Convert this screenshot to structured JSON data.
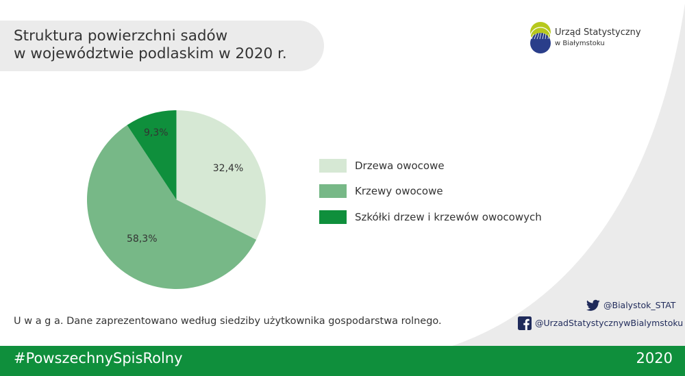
{
  "title": {
    "line1": "Struktura powierzchni sadów",
    "line2": "w województwie podlaskim w 2020 r."
  },
  "logo": {
    "name": "Urząd Statystyczny",
    "sub": "w Białymstoku",
    "colors": {
      "top": "#b7c81d",
      "bottom": "#2a3e8a"
    }
  },
  "chart_data": {
    "type": "pie",
    "categories": [
      "Drzewa owocowe",
      "Krzewy owocowe",
      "Szkółki drzew i krzewów owocowych"
    ],
    "values": [
      32.4,
      58.3,
      9.3
    ],
    "labels": [
      "32,4%",
      "58,3%",
      "9,3%"
    ],
    "colors": [
      "#d6e8d4",
      "#77b887",
      "#0f8f3c"
    ],
    "legend_position": "right"
  },
  "note": "U w a g a. Dane zaprezentowano według siedziby użytkownika gospodarstwa rolnego.",
  "social": {
    "twitter": {
      "icon": "twitter-icon",
      "handle": "@Bialystok_STAT"
    },
    "facebook": {
      "icon": "facebook-icon",
      "handle": "@UrzadStatystycznywBialymstoku"
    }
  },
  "footer": {
    "hashtag": "#PowszechnySpisRolny",
    "year": "2020"
  },
  "colors": {
    "accent": "#0f8f3c",
    "background": "#ebebeb"
  }
}
